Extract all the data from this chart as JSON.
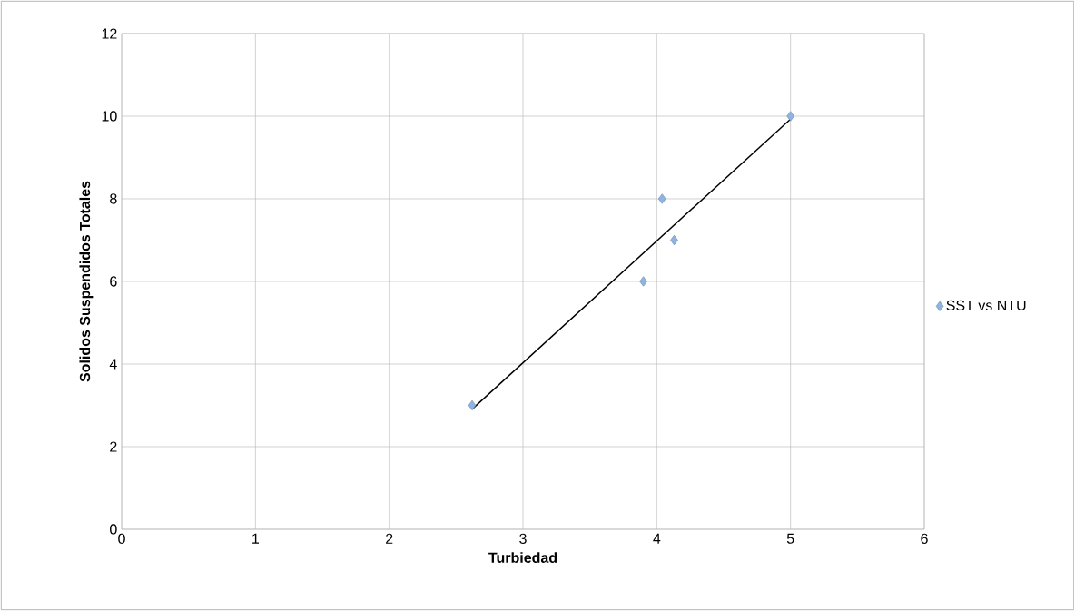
{
  "chart_data": {
    "type": "scatter",
    "xlabel": "Turbiedad",
    "ylabel": "Solidos Suspendidos Totales",
    "xlim": [
      0,
      6
    ],
    "ylim": [
      0,
      12
    ],
    "xticks": [
      0,
      1,
      2,
      3,
      4,
      5,
      6
    ],
    "yticks": [
      0,
      2,
      4,
      6,
      8,
      10,
      12
    ],
    "grid": true,
    "legend": "right",
    "marker": "diamond",
    "series": [
      {
        "name": "SST vs NTU",
        "color": "#8db4e2",
        "x": [
          2.62,
          3.9,
          4.04,
          4.13,
          5.0
        ],
        "values": [
          3,
          6,
          8,
          7,
          10
        ]
      },
      {
        "type": "line",
        "color": "#000000",
        "marker": "none",
        "x": [
          2.62,
          5.0
        ],
        "values": [
          2.91,
          9.93
        ]
      }
    ]
  }
}
